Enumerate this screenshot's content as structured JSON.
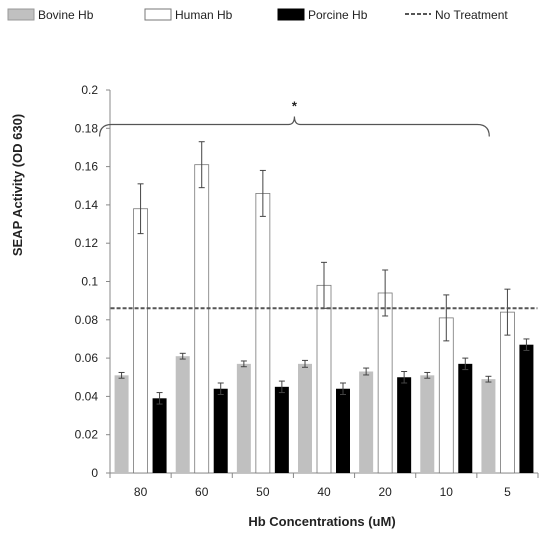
{
  "chart_data": {
    "type": "bar",
    "xlabel": "Hb Concentrations (uM)",
    "ylabel": "SEAP Activity (OD 630)",
    "categories": [
      "80",
      "60",
      "50",
      "40",
      "20",
      "10",
      "5"
    ],
    "ylim": [
      0,
      0.2
    ],
    "yticks": [
      "0",
      "0.02",
      "0.04",
      "0.06",
      "0.08",
      "0.1",
      "0.12",
      "0.14",
      "0.16",
      "0.18",
      "0.2"
    ],
    "grid": false,
    "legend_position": "top",
    "series": [
      {
        "name": "Bovine Hb",
        "color": "#c0c0c0",
        "values": [
          0.051,
          0.061,
          0.057,
          0.057,
          0.053,
          0.051,
          0.049
        ],
        "errors": [
          0.0015,
          0.0015,
          0.0015,
          0.0018,
          0.0018,
          0.0015,
          0.0015
        ]
      },
      {
        "name": "Human Hb",
        "color": "#ffffff",
        "values": [
          0.138,
          0.161,
          0.146,
          0.098,
          0.094,
          0.081,
          0.084
        ],
        "errors": [
          0.013,
          0.012,
          0.012,
          0.012,
          0.012,
          0.012,
          0.012
        ]
      },
      {
        "name": "Porcine Hb",
        "color": "#000000",
        "values": [
          0.039,
          0.044,
          0.045,
          0.044,
          0.05,
          0.057,
          0.067
        ],
        "errors": [
          0.003,
          0.003,
          0.003,
          0.003,
          0.003,
          0.003,
          0.003
        ]
      }
    ],
    "reference_line": {
      "name": "No Treatment",
      "value": 0.086,
      "style": "dashed"
    },
    "annotation": {
      "text": "*",
      "bracket_from": "80",
      "bracket_to": "10",
      "level": 0.182
    }
  }
}
